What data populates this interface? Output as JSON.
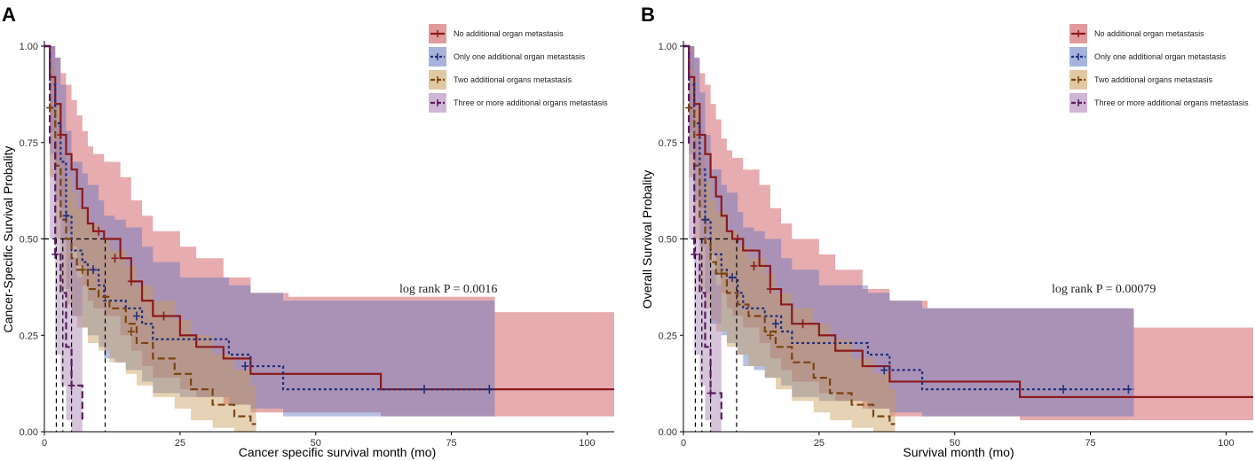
{
  "chart_data": [
    {
      "panel": "A",
      "type": "line",
      "title": "",
      "xlabel": "Cancer specific survival month (mo)",
      "ylabel": "Cancer-Specific Survival Probality",
      "xlim": [
        0,
        105
      ],
      "ylim": [
        0,
        1.0
      ],
      "xticks": [
        "0",
        "25",
        "50",
        "75",
        "100"
      ],
      "yticks": [
        "0.00",
        "0.25",
        "0.50",
        "0.75",
        "1.00"
      ],
      "annotation": "log rank P = 0.0016",
      "legend_position": "top-right",
      "series": [
        {
          "name": "No additional organ metastasis",
          "color": "#8b1a1a",
          "fill": "#c9484d",
          "dash": "solid",
          "x": [
            0,
            1,
            2,
            3,
            4,
            5,
            6,
            7,
            8,
            9,
            11,
            14,
            16,
            18,
            20,
            25,
            28,
            33,
            38,
            45,
            62,
            83,
            105
          ],
          "y": [
            1.0,
            0.92,
            0.85,
            0.77,
            0.72,
            0.68,
            0.63,
            0.58,
            0.54,
            0.52,
            0.5,
            0.45,
            0.39,
            0.34,
            0.3,
            0.25,
            0.22,
            0.19,
            0.15,
            0.15,
            0.11,
            0.11,
            0.11
          ],
          "upper": [
            1.0,
            1.0,
            0.97,
            0.93,
            0.9,
            0.86,
            0.82,
            0.78,
            0.74,
            0.72,
            0.7,
            0.66,
            0.6,
            0.56,
            0.52,
            0.48,
            0.45,
            0.4,
            0.36,
            0.35,
            0.35,
            0.31,
            0.31
          ],
          "lower": [
            1.0,
            0.78,
            0.69,
            0.58,
            0.52,
            0.48,
            0.43,
            0.38,
            0.34,
            0.32,
            0.3,
            0.25,
            0.21,
            0.17,
            0.14,
            0.11,
            0.09,
            0.07,
            0.05,
            0.05,
            0.04,
            0.04,
            0.04
          ],
          "censor": [
            [
              3,
              0.77
            ],
            [
              10,
              0.52
            ],
            [
              13,
              0.45
            ],
            [
              16,
              0.39
            ],
            [
              22,
              0.3
            ]
          ]
        },
        {
          "name": "Only one additional organ metastasis",
          "color": "#1f2f7a",
          "fill": "#5f74c0",
          "dash": "3,3",
          "x": [
            0,
            1,
            2,
            3,
            4,
            5,
            7,
            8,
            10,
            11,
            13,
            15,
            18,
            20,
            25,
            34,
            38,
            44,
            62,
            70,
            83
          ],
          "y": [
            1.0,
            0.9,
            0.8,
            0.7,
            0.56,
            0.47,
            0.44,
            0.42,
            0.38,
            0.34,
            0.34,
            0.32,
            0.28,
            0.24,
            0.24,
            0.2,
            0.17,
            0.11,
            0.11,
            0.11,
            0.11
          ],
          "upper": [
            1.0,
            1.0,
            0.97,
            0.9,
            0.78,
            0.7,
            0.67,
            0.64,
            0.6,
            0.56,
            0.55,
            0.53,
            0.48,
            0.44,
            0.4,
            0.38,
            0.36,
            0.34,
            0.34,
            0.34,
            0.34
          ],
          "lower": [
            1.0,
            0.72,
            0.6,
            0.5,
            0.37,
            0.3,
            0.27,
            0.25,
            0.22,
            0.19,
            0.18,
            0.16,
            0.13,
            0.1,
            0.09,
            0.07,
            0.06,
            0.04,
            0.04,
            0.04,
            0.04
          ],
          "censor": [
            [
              4,
              0.56
            ],
            [
              9,
              0.42
            ],
            [
              17,
              0.3
            ],
            [
              37,
              0.17
            ],
            [
              70,
              0.11
            ],
            [
              82,
              0.11
            ]
          ]
        },
        {
          "name": "Two additional organs metastasis",
          "color": "#7a4410",
          "fill": "#c79b58",
          "dash": "8,4",
          "x": [
            0,
            1,
            2,
            3,
            4,
            5,
            6,
            8,
            10,
            12,
            15,
            17,
            20,
            24,
            27,
            31,
            35,
            38,
            39
          ],
          "y": [
            1.0,
            0.84,
            0.69,
            0.55,
            0.5,
            0.45,
            0.42,
            0.37,
            0.35,
            0.32,
            0.28,
            0.23,
            0.19,
            0.15,
            0.11,
            0.07,
            0.04,
            0.02,
            0.02
          ],
          "upper": [
            1.0,
            0.95,
            0.84,
            0.72,
            0.66,
            0.62,
            0.58,
            0.54,
            0.5,
            0.47,
            0.43,
            0.38,
            0.34,
            0.29,
            0.25,
            0.2,
            0.16,
            0.12,
            0.12
          ],
          "lower": [
            1.0,
            0.66,
            0.5,
            0.37,
            0.33,
            0.3,
            0.27,
            0.23,
            0.21,
            0.18,
            0.15,
            0.12,
            0.09,
            0.06,
            0.03,
            0.01,
            0.0,
            0.0,
            0.0
          ],
          "censor": [
            [
              1,
              0.84
            ],
            [
              7,
              0.42
            ],
            [
              16,
              0.26
            ]
          ]
        },
        {
          "name": "Three or more additional organs metastasis",
          "color": "#5a1a5e",
          "fill": "#a57cb0",
          "dash": "8,4",
          "x": [
            0,
            1,
            2,
            3,
            4,
            5,
            6,
            7
          ],
          "y": [
            1.0,
            0.75,
            0.46,
            0.36,
            0.22,
            0.12,
            0.12,
            0.03
          ],
          "upper": [
            1.0,
            1.0,
            0.8,
            0.72,
            0.55,
            0.45,
            0.4,
            0.35
          ],
          "lower": [
            1.0,
            0.5,
            0.2,
            0.12,
            0.03,
            0.0,
            0.0,
            0.0
          ],
          "censor": [
            [
              2,
              0.46
            ],
            [
              5,
              0.12
            ]
          ]
        }
      ],
      "median_lines": [
        2.2,
        3.4,
        5.0,
        11.2
      ]
    },
    {
      "panel": "B",
      "type": "line",
      "title": "",
      "xlabel": "Survival month (mo)",
      "ylabel": "Overall Survival Probality",
      "xlim": [
        0,
        105
      ],
      "ylim": [
        0,
        1.0
      ],
      "xticks": [
        "0",
        "25",
        "50",
        "75",
        "100"
      ],
      "yticks": [
        "0.00",
        "0.25",
        "0.50",
        "0.75",
        "1.00"
      ],
      "annotation": "log rank P = 0.00079",
      "legend_position": "top-right",
      "series": [
        {
          "name": "No additional organ metastasis",
          "color": "#8b1a1a",
          "fill": "#c9484d",
          "dash": "solid",
          "x": [
            0,
            1,
            2,
            3,
            4,
            5,
            6,
            7,
            8,
            9,
            11,
            14,
            16,
            18,
            20,
            25,
            28,
            33,
            38,
            45,
            62,
            83,
            105
          ],
          "y": [
            1.0,
            0.92,
            0.85,
            0.77,
            0.72,
            0.66,
            0.61,
            0.56,
            0.52,
            0.5,
            0.47,
            0.43,
            0.37,
            0.33,
            0.28,
            0.25,
            0.21,
            0.17,
            0.13,
            0.13,
            0.09,
            0.09,
            0.09
          ],
          "upper": [
            1.0,
            1.0,
            0.97,
            0.93,
            0.9,
            0.85,
            0.81,
            0.76,
            0.73,
            0.71,
            0.68,
            0.64,
            0.58,
            0.54,
            0.5,
            0.46,
            0.42,
            0.37,
            0.34,
            0.32,
            0.32,
            0.27,
            0.27
          ],
          "lower": [
            1.0,
            0.78,
            0.69,
            0.58,
            0.52,
            0.46,
            0.41,
            0.36,
            0.32,
            0.3,
            0.27,
            0.23,
            0.19,
            0.16,
            0.13,
            0.1,
            0.08,
            0.06,
            0.04,
            0.04,
            0.03,
            0.03,
            0.03
          ],
          "censor": [
            [
              3,
              0.77
            ],
            [
              10,
              0.5
            ],
            [
              13,
              0.43
            ],
            [
              16,
              0.37
            ],
            [
              22,
              0.28
            ]
          ]
        },
        {
          "name": "Only one additional organ metastasis",
          "color": "#1f2f7a",
          "fill": "#5f74c0",
          "dash": "3,3",
          "x": [
            0,
            1,
            2,
            3,
            4,
            5,
            7,
            8,
            10,
            11,
            13,
            15,
            18,
            20,
            25,
            34,
            38,
            44,
            62,
            70,
            83
          ],
          "y": [
            1.0,
            0.9,
            0.8,
            0.68,
            0.55,
            0.46,
            0.42,
            0.4,
            0.36,
            0.32,
            0.32,
            0.3,
            0.26,
            0.23,
            0.23,
            0.2,
            0.16,
            0.11,
            0.11,
            0.11,
            0.11
          ],
          "upper": [
            1.0,
            1.0,
            0.97,
            0.88,
            0.77,
            0.68,
            0.64,
            0.62,
            0.57,
            0.53,
            0.52,
            0.5,
            0.45,
            0.42,
            0.38,
            0.36,
            0.34,
            0.32,
            0.32,
            0.32,
            0.32
          ],
          "lower": [
            1.0,
            0.72,
            0.6,
            0.48,
            0.36,
            0.28,
            0.25,
            0.23,
            0.2,
            0.17,
            0.16,
            0.14,
            0.12,
            0.09,
            0.08,
            0.06,
            0.05,
            0.04,
            0.04,
            0.04,
            0.04
          ],
          "censor": [
            [
              4,
              0.55
            ],
            [
              9,
              0.4
            ],
            [
              17,
              0.28
            ],
            [
              37,
              0.16
            ],
            [
              70,
              0.11
            ],
            [
              82,
              0.11
            ]
          ]
        },
        {
          "name": "Two additional organs metastasis",
          "color": "#7a4410",
          "fill": "#c79b58",
          "dash": "8,4",
          "x": [
            0,
            1,
            2,
            3,
            4,
            5,
            6,
            8,
            10,
            12,
            15,
            17,
            20,
            24,
            27,
            31,
            35,
            38,
            39
          ],
          "y": [
            1.0,
            0.84,
            0.69,
            0.55,
            0.49,
            0.44,
            0.41,
            0.36,
            0.33,
            0.3,
            0.26,
            0.22,
            0.18,
            0.14,
            0.1,
            0.07,
            0.04,
            0.02,
            0.02
          ],
          "upper": [
            1.0,
            0.95,
            0.84,
            0.72,
            0.65,
            0.6,
            0.57,
            0.52,
            0.48,
            0.45,
            0.41,
            0.36,
            0.32,
            0.28,
            0.24,
            0.19,
            0.15,
            0.11,
            0.11
          ],
          "lower": [
            1.0,
            0.66,
            0.5,
            0.37,
            0.32,
            0.29,
            0.26,
            0.22,
            0.2,
            0.17,
            0.14,
            0.11,
            0.08,
            0.05,
            0.03,
            0.01,
            0.0,
            0.0,
            0.0
          ],
          "censor": [
            [
              1,
              0.84
            ],
            [
              7,
              0.41
            ],
            [
              16,
              0.25
            ]
          ]
        },
        {
          "name": "Three or more additional organs metastasis",
          "color": "#5a1a5e",
          "fill": "#a57cb0",
          "dash": "8,4",
          "x": [
            0,
            1,
            2,
            3,
            4,
            5,
            6,
            7
          ],
          "y": [
            1.0,
            0.75,
            0.46,
            0.36,
            0.22,
            0.1,
            0.1,
            0.03
          ],
          "upper": [
            1.0,
            1.0,
            0.8,
            0.72,
            0.55,
            0.42,
            0.38,
            0.33
          ],
          "lower": [
            1.0,
            0.5,
            0.2,
            0.12,
            0.03,
            0.0,
            0.0,
            0.0
          ],
          "censor": [
            [
              2,
              0.46
            ],
            [
              5,
              0.1
            ]
          ]
        }
      ],
      "median_lines": [
        2.2,
        3.4,
        5.0,
        9.8
      ]
    }
  ]
}
